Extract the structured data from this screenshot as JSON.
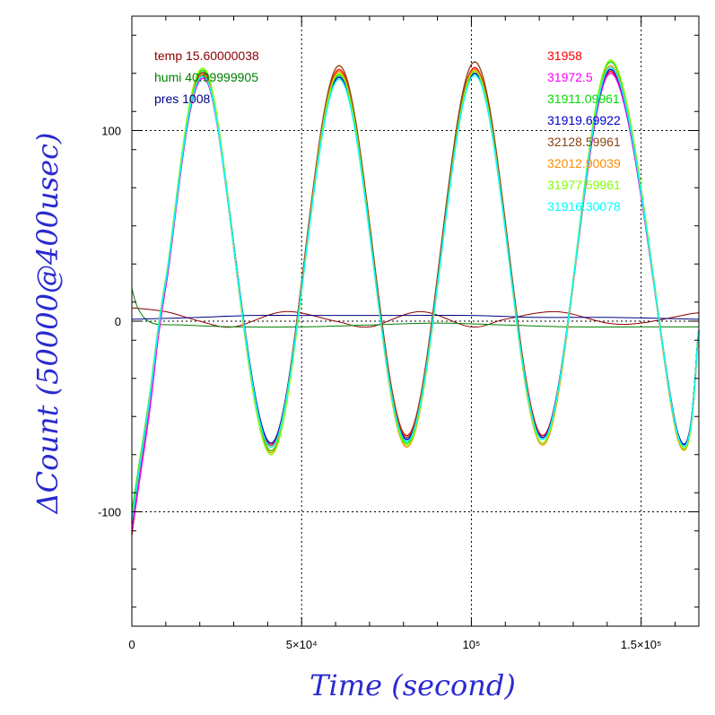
{
  "chart_data": {
    "type": "line",
    "xlabel": "Time (second)",
    "ylabel": "ΔCount (50000@400usec)",
    "xlim": [
      0,
      167000
    ],
    "ylim": [
      -160,
      160
    ],
    "x_ticks": [
      {
        "value": 0,
        "label": "0"
      },
      {
        "value": 50000,
        "label": "5×10⁴"
      },
      {
        "value": 100000,
        "label": "10⁵"
      },
      {
        "value": 150000,
        "label": "1.5×10⁵"
      }
    ],
    "y_ticks": [
      {
        "value": -100,
        "label": "-100"
      },
      {
        "value": 0,
        "label": "0"
      },
      {
        "value": 100,
        "label": "100"
      }
    ],
    "grid": "dotted at labeled ticks",
    "env_legend": [
      {
        "label": "temp 15.60000038",
        "color": "#8b0000"
      },
      {
        "label": "humi 40.99999905",
        "color": "#008000"
      },
      {
        "label": "pres 1008",
        "color": "#000080"
      }
    ],
    "series": [
      {
        "name": "31958",
        "color": "#ff0000",
        "x": [
          0,
          5000,
          10000,
          22000,
          41000,
          61000,
          81000,
          101000,
          121000,
          141000,
          161000,
          167000
        ],
        "y": [
          -112,
          -45,
          20,
          128,
          -65,
          132,
          -60,
          133,
          -60,
          131,
          -60,
          -5
        ]
      },
      {
        "name": "31972.5",
        "color": "#ff00ff",
        "x": [
          0,
          5000,
          10000,
          22000,
          41000,
          61000,
          81000,
          101000,
          121000,
          141000,
          161000,
          167000
        ],
        "y": [
          -110,
          -50,
          18,
          126,
          -66,
          130,
          -62,
          131,
          -62,
          130,
          -61,
          -5
        ]
      },
      {
        "name": "31911.09961",
        "color": "#00dd00",
        "x": [
          0,
          5000,
          10000,
          22000,
          41000,
          61000,
          81000,
          101000,
          121000,
          141000,
          161000,
          167000
        ],
        "y": [
          -100,
          -42,
          22,
          130,
          -68,
          129,
          -64,
          132,
          -64,
          136,
          -62,
          -6
        ]
      },
      {
        "name": "31919.69922",
        "color": "#0000cc",
        "x": [
          0,
          5000,
          10000,
          22000,
          41000,
          61000,
          81000,
          101000,
          121000,
          141000,
          161000,
          167000
        ],
        "y": [
          -106,
          -44,
          21,
          127,
          -64,
          128,
          -62,
          130,
          -61,
          132,
          -60,
          -5
        ]
      },
      {
        "name": "32128.59961",
        "color": "#8b4513",
        "x": [
          0,
          5000,
          10000,
          22000,
          41000,
          61000,
          81000,
          101000,
          121000,
          141000,
          161000,
          167000
        ],
        "y": [
          -104,
          -43,
          21,
          129,
          -66,
          134,
          -61,
          136,
          -62,
          133,
          -61,
          -5
        ]
      },
      {
        "name": "32012.90039",
        "color": "#ff8c00",
        "x": [
          0,
          5000,
          10000,
          22000,
          41000,
          61000,
          81000,
          101000,
          121000,
          141000,
          161000,
          167000
        ],
        "y": [
          -105,
          -44,
          21,
          128,
          -69,
          131,
          -66,
          132,
          -65,
          134,
          -63,
          -6
        ]
      },
      {
        "name": "31977.59961",
        "color": "#7fff00",
        "x": [
          0,
          5000,
          10000,
          22000,
          41000,
          61000,
          81000,
          101000,
          121000,
          141000,
          161000,
          167000
        ],
        "y": [
          -103,
          -43,
          22,
          131,
          -70,
          130,
          -65,
          131,
          -64,
          137,
          -62,
          -6
        ]
      },
      {
        "name": "31916.30078",
        "color": "#00ffff",
        "x": [
          0,
          5000,
          10000,
          22000,
          41000,
          61000,
          81000,
          101000,
          121000,
          141000,
          161000,
          167000
        ],
        "y": [
          -104,
          -44,
          21,
          127,
          -66,
          127,
          -63,
          129,
          -62,
          133,
          -61,
          -5
        ]
      }
    ],
    "env_series": [
      {
        "name": "temp",
        "color": "#8b0000",
        "x": [
          0,
          10000,
          20000,
          30000,
          45000,
          60000,
          70000,
          85000,
          100000,
          110000,
          125000,
          140000,
          150000,
          165000,
          167000
        ],
        "y": [
          7,
          5,
          0,
          -3,
          5,
          0,
          -3,
          5,
          -3,
          1,
          5,
          -1,
          -1,
          4,
          4
        ]
      },
      {
        "name": "humi",
        "color": "#008000",
        "x": [
          0,
          2000,
          6000,
          15000,
          30000,
          50000,
          70000,
          90000,
          110000,
          130000,
          150000,
          167000
        ],
        "y": [
          17,
          6,
          -1,
          -2,
          -3,
          -3,
          -2,
          -1,
          -2,
          -3,
          -3,
          -3
        ]
      },
      {
        "name": "pres",
        "color": "#000080",
        "x": [
          0,
          20000,
          35000,
          50000,
          80000,
          100000,
          120000,
          140000,
          167000
        ],
        "y": [
          1,
          2,
          3,
          3,
          3,
          3,
          2,
          2,
          1
        ]
      }
    ]
  }
}
